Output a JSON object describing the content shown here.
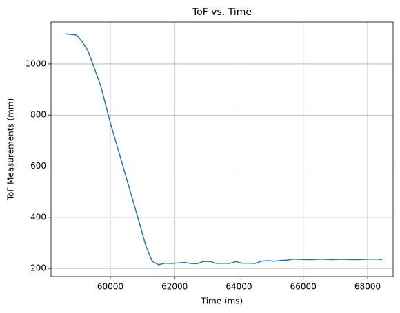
{
  "chart_data": {
    "type": "line",
    "title": "ToF vs. Time",
    "x_label": "Time (ms)",
    "y_label": "ToF Measurements (mm)",
    "series": [
      {
        "name": "ToF",
        "color": "#1f77b4",
        "x": [
          58600,
          58950,
          59100,
          59300,
          59500,
          59700,
          60000,
          60300,
          60600,
          60900,
          61100,
          61300,
          61500,
          61700,
          61900,
          62100,
          62300,
          62500,
          62700,
          62900,
          63100,
          63300,
          63500,
          63700,
          63900,
          64100,
          64300,
          64500,
          64700,
          64900,
          65100,
          65300,
          65500,
          65700,
          65900,
          66100,
          66300,
          66500,
          66700,
          66900,
          67100,
          67300,
          67500,
          67700,
          67900,
          68100,
          68300,
          68450
        ],
        "values": [
          1118,
          1113,
          1092,
          1052,
          985,
          915,
          770,
          640,
          510,
          380,
          290,
          228,
          214,
          220,
          219,
          221,
          223,
          219,
          218,
          227,
          227,
          219,
          220,
          219,
          226,
          220,
          220,
          219,
          228,
          230,
          228,
          231,
          232,
          236,
          235,
          234,
          234,
          236,
          235,
          234,
          235,
          235,
          234,
          234,
          235,
          236,
          236,
          234
        ]
      }
    ],
    "xlim": [
      58157,
      68793
    ],
    "ylim": [
      168,
      1164
    ],
    "xticks": [
      60000,
      62000,
      64000,
      66000,
      68000
    ],
    "yticks": [
      200,
      400,
      600,
      800,
      1000
    ],
    "grid": true
  }
}
